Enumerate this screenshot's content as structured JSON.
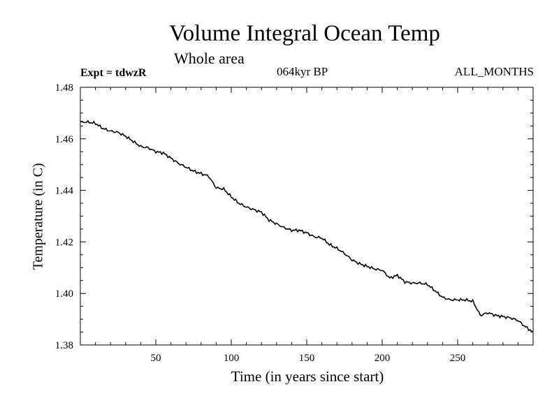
{
  "chart_data": {
    "type": "line",
    "title": "Volume Integral Ocean Temp",
    "subtitle": "Whole area",
    "annotations": {
      "experiment": "Expt = tdwzR",
      "period": "064kyr BP",
      "months": "ALL_MONTHS"
    },
    "xlabel": "Time (in years since start)",
    "ylabel": "Temperature (in C)",
    "xlim": [
      0,
      300
    ],
    "ylim": [
      1.38,
      1.48
    ],
    "xticks": [
      50,
      100,
      150,
      200,
      250
    ],
    "xtick_labels": [
      "50",
      "100",
      "150",
      "200",
      "250"
    ],
    "yticks": [
      1.38,
      1.4,
      1.42,
      1.44,
      1.46,
      1.48
    ],
    "ytick_labels": [
      "1.38",
      "1.40",
      "1.42",
      "1.44",
      "1.46",
      "1.48"
    ],
    "grid": false,
    "series": [
      {
        "color": "#000000",
        "x": [
          0,
          5,
          10,
          15,
          20,
          25,
          30,
          35,
          40,
          45,
          50,
          55,
          60,
          65,
          70,
          75,
          80,
          85,
          90,
          95,
          100,
          105,
          110,
          115,
          120,
          125,
          130,
          135,
          140,
          145,
          150,
          155,
          160,
          165,
          170,
          175,
          180,
          185,
          190,
          195,
          200,
          205,
          210,
          215,
          220,
          225,
          230,
          235,
          240,
          245,
          250,
          255,
          260,
          265,
          270,
          275,
          280,
          285,
          290,
          295,
          300
        ],
        "y": [
          1.4665,
          1.4665,
          1.466,
          1.464,
          1.463,
          1.4625,
          1.461,
          1.459,
          1.457,
          1.4565,
          1.455,
          1.4545,
          1.4525,
          1.4505,
          1.449,
          1.4475,
          1.4465,
          1.4455,
          1.441,
          1.4405,
          1.4375,
          1.435,
          1.4335,
          1.4325,
          1.4315,
          1.4285,
          1.427,
          1.4255,
          1.4245,
          1.4245,
          1.4235,
          1.422,
          1.4215,
          1.419,
          1.4175,
          1.4155,
          1.413,
          1.4115,
          1.4105,
          1.4095,
          1.409,
          1.406,
          1.407,
          1.4045,
          1.404,
          1.404,
          1.4035,
          1.401,
          1.3985,
          1.3975,
          1.3975,
          1.3975,
          1.397,
          1.3915,
          1.3925,
          1.3915,
          1.391,
          1.3905,
          1.3895,
          1.387,
          1.385
        ]
      }
    ]
  }
}
